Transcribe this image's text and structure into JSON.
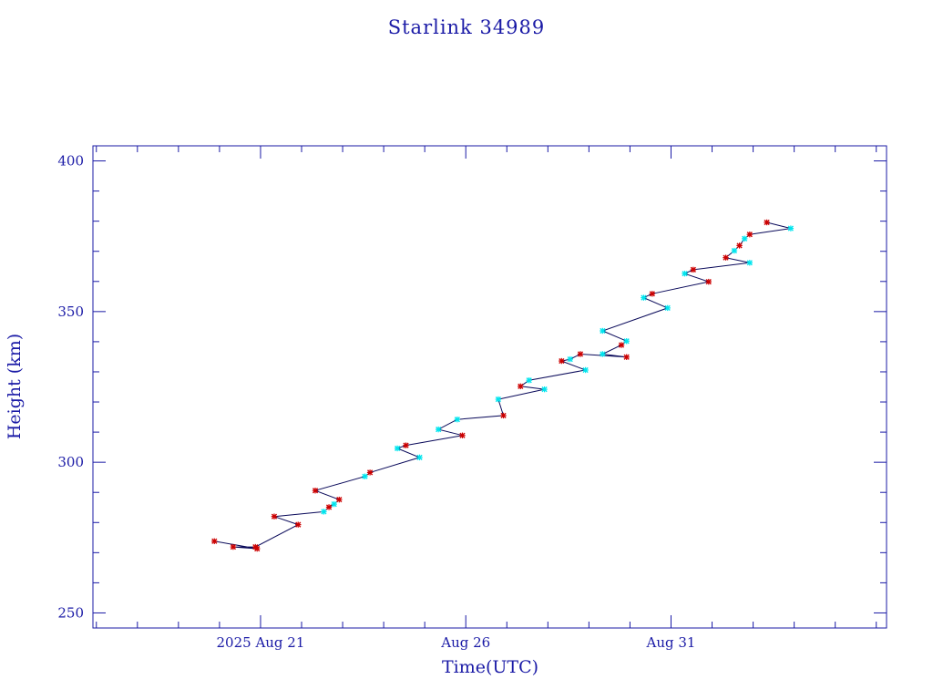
{
  "colors": {
    "text": "#1a1aa6",
    "frame": "#1a1aa6",
    "line": "#0a0a5a",
    "marker_primary": "#cc0000",
    "marker_secondary": "#00e5ee",
    "background": "#ffffff"
  },
  "chart_data": {
    "type": "line",
    "title": "Starlink 34989",
    "xlabel": "Time(UTC)",
    "ylabel": "Height (km)",
    "x_axis": {
      "unit": "days",
      "range": [
        "2025-08-16T22:00",
        "2025-09-05T06:00"
      ],
      "tick_labels": [
        {
          "date": "2025-08-21",
          "label": "2025 Aug 21"
        },
        {
          "date": "2025-08-26",
          "label": "Aug 26"
        },
        {
          "date": "2025-08-31",
          "label": "Aug 31"
        }
      ]
    },
    "y_axis": {
      "range": [
        245,
        405
      ],
      "ticks": [
        250,
        300,
        350,
        400
      ],
      "tick_labels": [
        "250",
        "300",
        "350",
        "400"
      ]
    },
    "grid": false,
    "series": [
      {
        "points": [
          {
            "t": "2025-08-19T21:00",
            "y": 273.8,
            "m": "r"
          },
          {
            "t": "2025-08-20T22:00",
            "y": 271.3,
            "m": "r"
          },
          {
            "t": "2025-08-20T08:00",
            "y": 271.9,
            "m": "r"
          },
          {
            "t": "2025-08-20T21:00",
            "y": 271.9,
            "m": "r"
          },
          {
            "t": "2025-08-21T22:00",
            "y": 279.3,
            "m": "r"
          },
          {
            "t": "2025-08-21T08:00",
            "y": 282.0,
            "m": "r"
          },
          {
            "t": "2025-08-22T13:00",
            "y": 283.6,
            "m": "c"
          },
          {
            "t": "2025-08-22T16:00",
            "y": 285.1,
            "m": "r"
          },
          {
            "t": "2025-08-22T19:00",
            "y": 286.1,
            "m": "c"
          },
          {
            "t": "2025-08-22T22:00",
            "y": 287.6,
            "m": "r"
          },
          {
            "t": "2025-08-22T08:00",
            "y": 290.6,
            "m": "r"
          },
          {
            "t": "2025-08-23T13:00",
            "y": 295.3,
            "m": "c"
          },
          {
            "t": "2025-08-23T16:00",
            "y": 296.6,
            "m": "r"
          },
          {
            "t": "2025-08-24T21:00",
            "y": 301.6,
            "m": "c"
          },
          {
            "t": "2025-08-24T08:00",
            "y": 304.6,
            "m": "c"
          },
          {
            "t": "2025-08-24T13:00",
            "y": 305.6,
            "m": "r"
          },
          {
            "t": "2025-08-25T22:00",
            "y": 308.9,
            "m": "r"
          },
          {
            "t": "2025-08-25T08:00",
            "y": 310.9,
            "m": "c"
          },
          {
            "t": "2025-08-25T19:00",
            "y": 314.2,
            "m": "c"
          },
          {
            "t": "2025-08-26T22:00",
            "y": 315.5,
            "m": "r"
          },
          {
            "t": "2025-08-26T19:00",
            "y": 320.9,
            "m": "c"
          },
          {
            "t": "2025-08-27T22:00",
            "y": 324.2,
            "m": "c"
          },
          {
            "t": "2025-08-27T08:00",
            "y": 325.2,
            "m": "r"
          },
          {
            "t": "2025-08-27T13:00",
            "y": 327.2,
            "m": "c"
          },
          {
            "t": "2025-08-28T22:00",
            "y": 330.6,
            "m": "c"
          },
          {
            "t": "2025-08-28T08:00",
            "y": 333.6,
            "m": "r"
          },
          {
            "t": "2025-08-28T13:00",
            "y": 334.2,
            "m": "c"
          },
          {
            "t": "2025-08-28T19:00",
            "y": 335.9,
            "m": "r"
          },
          {
            "t": "2025-08-29T22:00",
            "y": 334.9,
            "m": "r"
          },
          {
            "t": "2025-08-29T08:00",
            "y": 335.9,
            "m": "c"
          },
          {
            "t": "2025-08-29T19:00",
            "y": 338.9,
            "m": "r"
          },
          {
            "t": "2025-08-29T22:00",
            "y": 340.2,
            "m": "c"
          },
          {
            "t": "2025-08-29T08:00",
            "y": 343.6,
            "m": "c"
          },
          {
            "t": "2025-08-30T22:00",
            "y": 351.2,
            "m": "c"
          },
          {
            "t": "2025-08-30T08:00",
            "y": 354.6,
            "m": "c"
          },
          {
            "t": "2025-08-30T13:00",
            "y": 355.9,
            "m": "r"
          },
          {
            "t": "2025-08-31T22:00",
            "y": 359.9,
            "m": "r"
          },
          {
            "t": "2025-08-31T08:00",
            "y": 362.6,
            "m": "c"
          },
          {
            "t": "2025-08-31T13:00",
            "y": 363.9,
            "m": "r"
          },
          {
            "t": "2025-09-01T22:00",
            "y": 366.2,
            "m": "c"
          },
          {
            "t": "2025-09-01T08:00",
            "y": 367.9,
            "m": "r"
          },
          {
            "t": "2025-09-01T13:00",
            "y": 370.2,
            "m": "c"
          },
          {
            "t": "2025-09-01T16:00",
            "y": 371.9,
            "m": "r"
          },
          {
            "t": "2025-09-01T19:00",
            "y": 374.2,
            "m": "c"
          },
          {
            "t": "2025-09-01T22:00",
            "y": 375.6,
            "m": "r"
          },
          {
            "t": "2025-09-02T22:00",
            "y": 377.6,
            "m": "c"
          },
          {
            "t": "2025-09-02T08:00",
            "y": 379.6,
            "m": "r"
          }
        ]
      }
    ]
  }
}
